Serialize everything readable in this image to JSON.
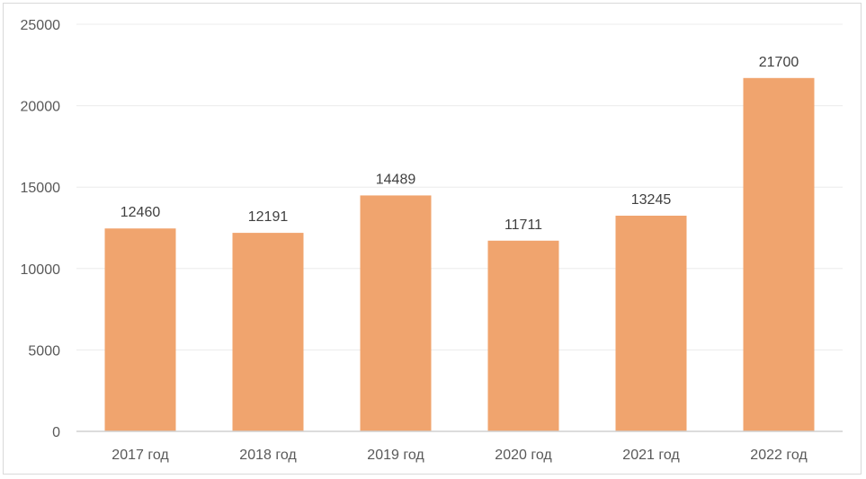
{
  "chart_data": {
    "type": "bar",
    "categories": [
      "2017 год",
      "2018 год",
      "2019 год",
      "2020 год",
      "2021 год",
      "2022 год"
    ],
    "values": [
      12460,
      12191,
      14489,
      11711,
      13245,
      21700
    ],
    "data_labels": [
      "12460",
      "12191",
      "14489",
      "11711",
      "13245",
      "21700"
    ],
    "title": "",
    "xlabel": "",
    "ylabel": "",
    "ylim": [
      0,
      25000
    ],
    "y_ticks": [
      0,
      5000,
      10000,
      15000,
      20000,
      25000
    ],
    "y_tick_labels": [
      "0",
      "5000",
      "10000",
      "15000",
      "20000",
      "25000"
    ],
    "grid": true,
    "legend": "none",
    "bar_color": "#f0a46e"
  }
}
